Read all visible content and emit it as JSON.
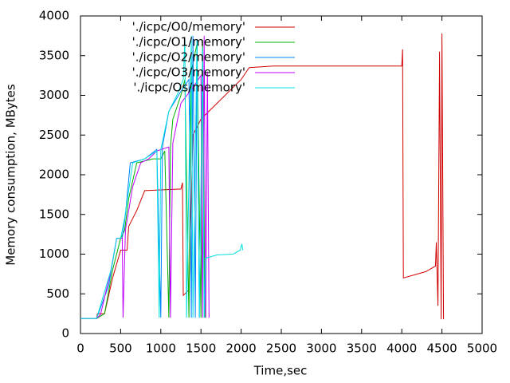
{
  "chart_data": {
    "type": "line",
    "xlabel": "Time,sec",
    "ylabel": "Memory consumption, MBytes",
    "xlim": [
      0,
      5000
    ],
    "ylim": [
      0,
      4000
    ],
    "xticks": [
      0,
      500,
      1000,
      1500,
      2000,
      2500,
      3000,
      3500,
      4000,
      4500,
      5000
    ],
    "yticks": [
      0,
      500,
      1000,
      1500,
      2000,
      2500,
      3000,
      3500,
      4000
    ],
    "legend": "top-left",
    "series": [
      {
        "name": "'./icpc/O0/memory'",
        "color": "#d00000",
        "x": [
          0,
          200,
          210,
          300,
          400,
          500,
          580,
          600,
          700,
          800,
          1250,
          1270,
          1280,
          1350,
          1400,
          1500,
          1700,
          2000,
          2100,
          2400,
          4000,
          4010,
          4020,
          4300,
          4420,
          4430,
          4450,
          4470,
          4490,
          4500,
          4520
        ],
        "values": [
          190,
          190,
          250,
          250,
          700,
          1050,
          1050,
          1350,
          1550,
          1800,
          1820,
          1900,
          480,
          550,
          2500,
          2700,
          2900,
          3200,
          3350,
          3370,
          3370,
          3580,
          700,
          780,
          850,
          1150,
          350,
          3550,
          180,
          3780,
          180
        ]
      },
      {
        "name": "'./icpc/O1/memory'",
        "color": "#00b000",
        "x": [
          0,
          200,
          300,
          400,
          500,
          550,
          600,
          700,
          900,
          1000,
          1050,
          1100,
          1120,
          1150,
          1250,
          1300,
          1350,
          1380,
          1450,
          1500,
          1520,
          1550
        ],
        "values": [
          190,
          190,
          250,
          800,
          1200,
          1300,
          1700,
          2150,
          2200,
          2200,
          2300,
          200,
          2350,
          2700,
          3000,
          3200,
          200,
          3300,
          3650,
          200,
          3700,
          200
        ]
      },
      {
        "name": "'./icpc/O2/memory'",
        "color": "#0080ff",
        "x": [
          0,
          200,
          350,
          450,
          520,
          560,
          620,
          800,
          950,
          1000,
          1020,
          1100,
          1250,
          1350,
          1380,
          1400,
          1430,
          1450,
          1480
        ],
        "values": [
          190,
          190,
          600,
          1200,
          1200,
          1500,
          2150,
          2200,
          2320,
          200,
          2350,
          2800,
          3050,
          3200,
          200,
          3750,
          200,
          3700,
          200
        ]
      },
      {
        "name": "'./icpc/O3/memory'",
        "color": "#c000ff",
        "x": [
          0,
          200,
          250,
          380,
          450,
          520,
          530,
          560,
          650,
          750,
          850,
          950,
          1100,
          1120,
          1150,
          1250,
          1400,
          1500,
          1520,
          1540,
          1560,
          1580,
          1600
        ],
        "values": [
          190,
          190,
          240,
          800,
          1200,
          1200,
          200,
          1300,
          1850,
          2150,
          2200,
          2300,
          2350,
          200,
          2400,
          2900,
          3100,
          3250,
          200,
          3750,
          200,
          3300,
          200
        ]
      },
      {
        "name": "'./icpc/Os/memory'",
        "color": "#00e0e0",
        "x": [
          0,
          200,
          380,
          450,
          500,
          550,
          650,
          800,
          950,
          980,
          1000,
          1100,
          1200,
          1280,
          1300,
          1320,
          1380,
          1400,
          1450,
          1480,
          1520,
          1540,
          1560,
          1700,
          1900,
          1990,
          2000,
          2010,
          2020
        ],
        "values": [
          190,
          190,
          800,
          1200,
          1200,
          1450,
          2150,
          2200,
          2300,
          200,
          2320,
          2800,
          3000,
          3200,
          3700,
          200,
          3750,
          200,
          3700,
          200,
          3600,
          200,
          950,
          990,
          1000,
          1050,
          1100,
          1130,
          1050
        ]
      }
    ]
  }
}
